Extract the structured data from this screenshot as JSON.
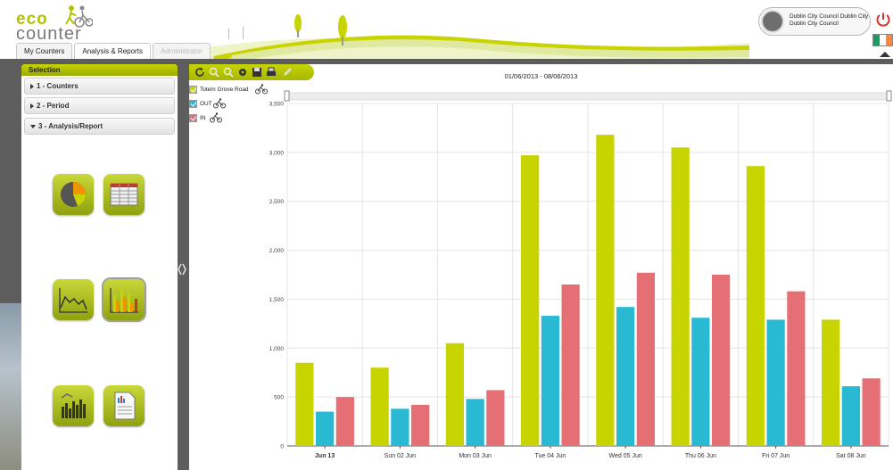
{
  "header": {
    "logo": {
      "line1": "eco",
      "line2": "counter"
    },
    "tabs": [
      {
        "label": "My Counters",
        "state": "normal"
      },
      {
        "label": "Analysis & Reports",
        "state": "active"
      },
      {
        "label": "Administrator",
        "state": "disabled"
      }
    ],
    "user": {
      "line1": "Dublin City Council Dublin City",
      "line2": "Dublin City Council"
    },
    "icons": {
      "power": "power-icon",
      "flag": "ireland-flag-icon"
    },
    "flag_colors": [
      "#169b62",
      "#ffffff",
      "#ff883e"
    ],
    "power_color": "#d9302c"
  },
  "sidebar": {
    "title": "Selection",
    "sections": [
      {
        "label": "1 - Counters",
        "expanded": false
      },
      {
        "label": "2 - Period",
        "expanded": false
      },
      {
        "label": "3 - Analysis/Report",
        "expanded": true
      }
    ],
    "report_types": [
      {
        "icon": "pie-chart-icon",
        "selected": false
      },
      {
        "icon": "table-icon",
        "selected": false
      },
      {
        "icon": "line-chart-icon",
        "selected": false
      },
      {
        "icon": "bar-chart-icon",
        "selected": true
      },
      {
        "icon": "bar-chart-weather-icon",
        "selected": false
      },
      {
        "icon": "report-document-icon",
        "selected": false
      }
    ]
  },
  "toolbar": {
    "icons": [
      "refresh-icon",
      "zoom-in-icon",
      "zoom-out-icon",
      "settings-icon",
      "save-icon",
      "print-icon",
      "edit-icon"
    ]
  },
  "chart_title": "01/06/2013 - 08/06/2013",
  "legend": [
    {
      "label": "Totem Grove Road",
      "color": "#c8d400"
    },
    {
      "label": "OUT",
      "color": "#2ab9d3"
    },
    {
      "label": "IN",
      "color": "#e47075"
    }
  ],
  "colors": {
    "accent": "#b5c400",
    "dark_band": "#5d5d5d"
  },
  "chart_data": {
    "type": "bar",
    "title": "01/06/2013 - 08/06/2013",
    "categories": [
      "Jun 13",
      "Sun 02 Jun",
      "Mon 03 Jun",
      "Tue 04 Jun",
      "Wed 05 Jun",
      "Thu 06 Jun",
      "Fri 07 Jun",
      "Sat 08 Jun"
    ],
    "series": [
      {
        "name": "Totem Grove Road",
        "color": "#c8d400",
        "values": [
          850,
          800,
          1050,
          2970,
          3180,
          3050,
          2860,
          1290
        ]
      },
      {
        "name": "OUT",
        "color": "#2ab9d3",
        "values": [
          350,
          380,
          480,
          1330,
          1420,
          1310,
          1290,
          610
        ]
      },
      {
        "name": "IN",
        "color": "#e47075",
        "values": [
          500,
          420,
          570,
          1650,
          1770,
          1750,
          1580,
          690
        ]
      }
    ],
    "ylim": [
      0,
      3500
    ],
    "yticks": [
      0,
      500,
      1000,
      1500,
      2000,
      2500,
      3000,
      3500
    ],
    "ytick_labels": [
      "0",
      "500",
      "1,000",
      "1,500",
      "2,000",
      "2,500",
      "3,000",
      "3,500"
    ],
    "grid": true,
    "legend_position": "top-left"
  }
}
